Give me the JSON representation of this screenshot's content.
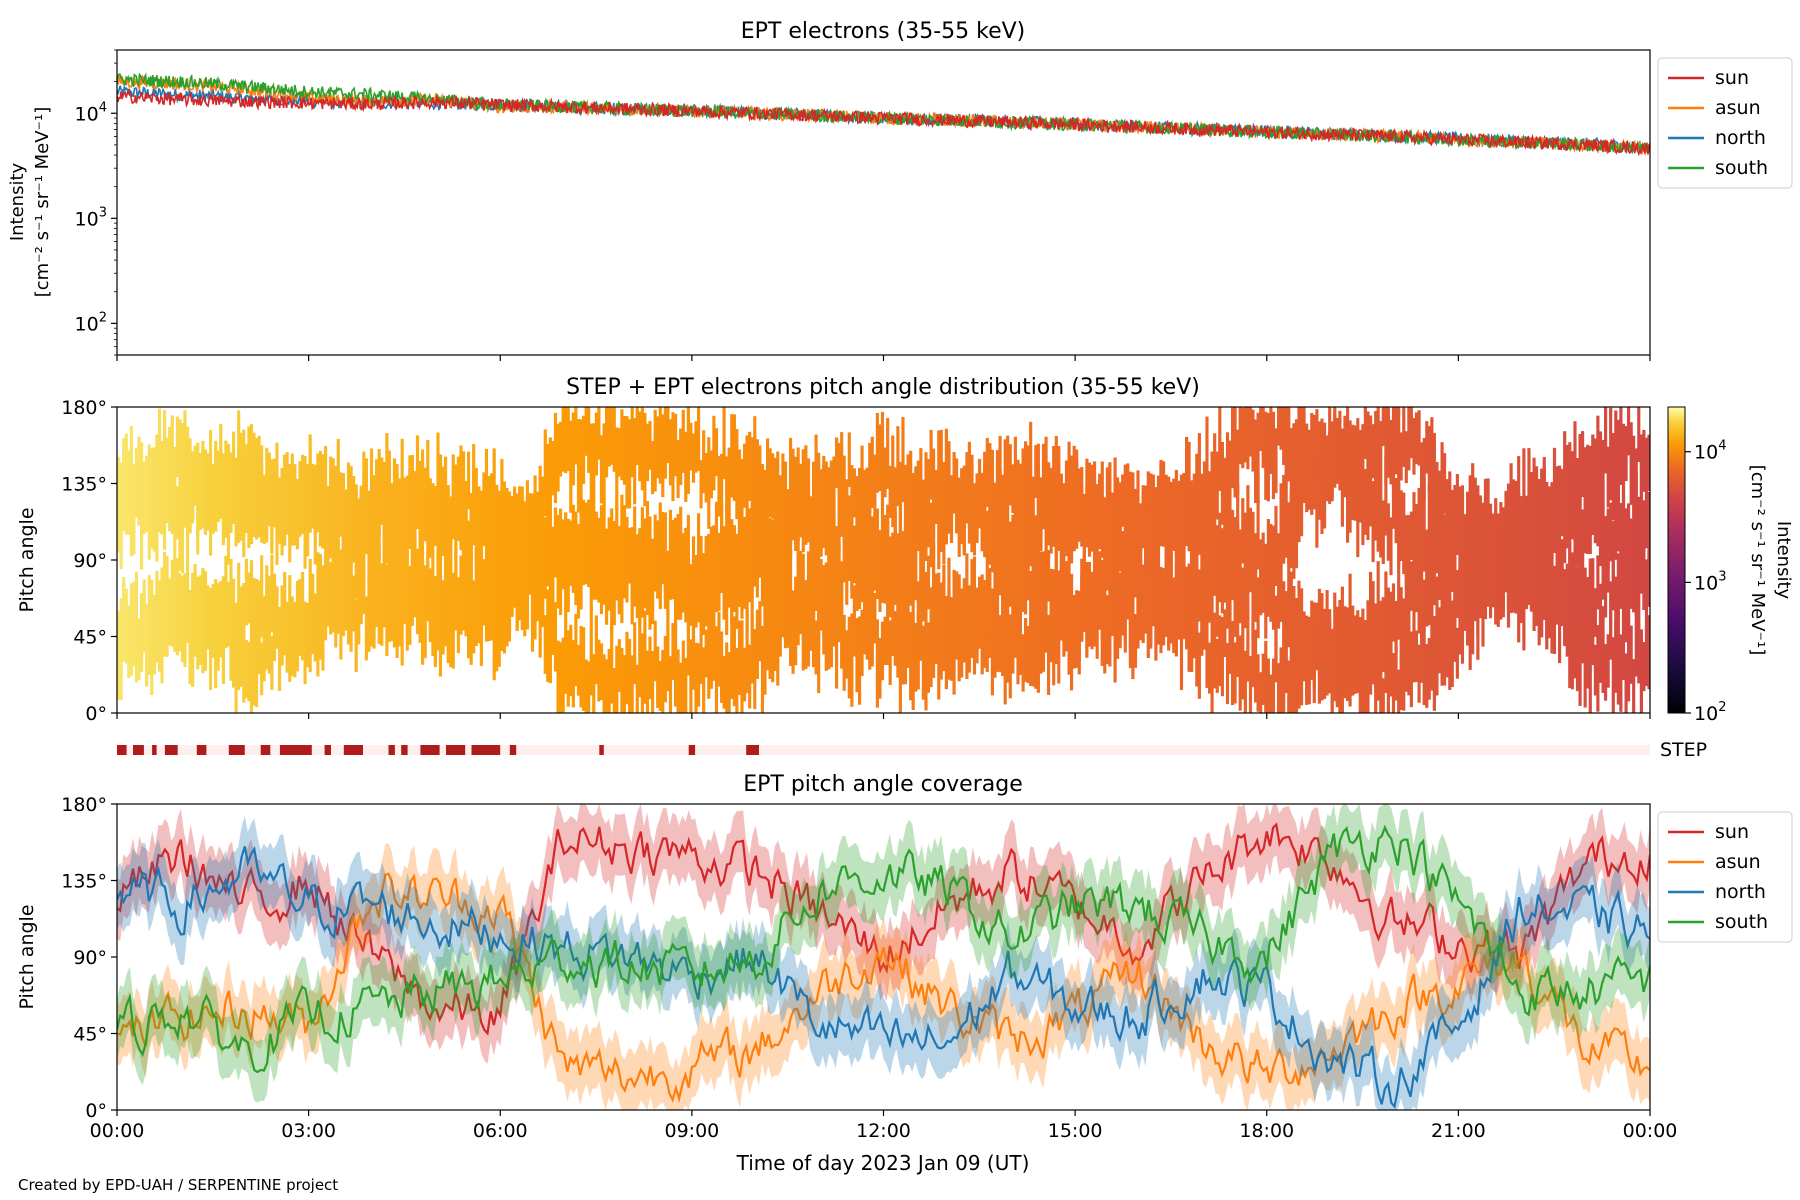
{
  "footer": "Created by EPD-UAH / SERPENTINE project",
  "xaxis": {
    "label": "Time of day 2023 Jan 09 (UT)",
    "ticks": [
      "00:00",
      "03:00",
      "06:00",
      "09:00",
      "12:00",
      "15:00",
      "18:00",
      "21:00",
      "00:00"
    ],
    "range_hours": [
      0,
      24
    ]
  },
  "colors": {
    "sun": "#d62728",
    "asun": "#ff7f0e",
    "north": "#1f77b4",
    "south": "#2ca02c"
  },
  "chart_data": [
    {
      "type": "line",
      "title": "EPT electrons (35-55 keV)",
      "ylabel_line1": "Intensity",
      "ylabel_line2": "[cm⁻² s⁻¹ sr⁻¹ MeV⁻¹]",
      "yscale": "log",
      "ylim": [
        50,
        40000
      ],
      "yticks": [
        {
          "value": 100,
          "base": "10",
          "exp": "2"
        },
        {
          "value": 1000,
          "base": "10",
          "exp": "3"
        },
        {
          "value": 10000,
          "base": "10",
          "exp": "4"
        }
      ],
      "x_hours": [
        0,
        1,
        2,
        3,
        4,
        5,
        6,
        7,
        8,
        9,
        10,
        11,
        12,
        13,
        14,
        15,
        16,
        17,
        18,
        19,
        20,
        21,
        22,
        23,
        24
      ],
      "legend_position": "outside-right",
      "series": [
        {
          "name": "sun",
          "values": [
            14500,
            13500,
            13000,
            12500,
            12200,
            12800,
            12000,
            11500,
            11000,
            10500,
            10000,
            9500,
            9000,
            8600,
            8200,
            7800,
            7400,
            7000,
            6600,
            6300,
            6000,
            5600,
            5300,
            5000,
            4600
          ]
        },
        {
          "name": "asun",
          "values": [
            20000,
            19000,
            17000,
            14000,
            13000,
            13500,
            11500,
            11500,
            11000,
            10500,
            10000,
            9500,
            9000,
            8600,
            8200,
            7800,
            7400,
            7000,
            6600,
            6300,
            6000,
            5600,
            5300,
            5000,
            4600
          ]
        },
        {
          "name": "north",
          "values": [
            16000,
            15000,
            14000,
            13000,
            12500,
            12500,
            12000,
            11500,
            11000,
            10500,
            10000,
            9600,
            9100,
            8700,
            8300,
            7900,
            7500,
            7100,
            6700,
            6400,
            6100,
            5700,
            5400,
            5100,
            4700
          ]
        },
        {
          "name": "south",
          "values": [
            21000,
            20000,
            18000,
            16000,
            15000,
            13500,
            12000,
            11500,
            11000,
            10500,
            10000,
            9500,
            9000,
            8600,
            8200,
            7800,
            7400,
            7000,
            6600,
            6300,
            6000,
            5600,
            5300,
            5000,
            4600
          ]
        }
      ]
    },
    {
      "type": "heatmap",
      "title": "STEP + EPT electrons pitch angle distribution (35-55 keV)",
      "ylabel": "Pitch angle",
      "ylim": [
        0,
        180
      ],
      "yticks": [
        "0°",
        "45°",
        "90°",
        "135°",
        "180°"
      ],
      "colorbar": {
        "label_line1": "Intensity",
        "label_line2": "[cm⁻² s⁻¹ sr⁻¹ MeV⁻¹]",
        "scale": "log",
        "range": [
          100,
          22000
        ],
        "ticks": [
          {
            "value": 100,
            "base": "10",
            "exp": "2"
          },
          {
            "value": 1000,
            "base": "10",
            "exp": "3"
          },
          {
            "value": 10000,
            "base": "10",
            "exp": "4"
          }
        ]
      },
      "band_intensity": [
        {
          "hour": 0,
          "value": 19000
        },
        {
          "hour": 2,
          "value": 16000
        },
        {
          "hour": 4,
          "value": 13500
        },
        {
          "hour": 6,
          "value": 12000
        },
        {
          "hour": 9,
          "value": 10500
        },
        {
          "hour": 12,
          "value": 9000
        },
        {
          "hour": 15,
          "value": 7800
        },
        {
          "hour": 18,
          "value": 6600
        },
        {
          "hour": 21,
          "value": 5600
        },
        {
          "hour": 24,
          "value": 4600
        }
      ]
    },
    {
      "type": "bar",
      "label": "STEP",
      "description_colors": {
        "on": "#b01c1c",
        "off": "#fdf0ec"
      },
      "on_intervals_hours": [
        [
          0.0,
          0.15
        ],
        [
          0.25,
          0.42
        ],
        [
          0.55,
          0.62
        ],
        [
          0.75,
          0.95
        ],
        [
          1.25,
          1.4
        ],
        [
          1.75,
          2.0
        ],
        [
          2.25,
          2.4
        ],
        [
          2.55,
          3.05
        ],
        [
          3.25,
          3.35
        ],
        [
          3.55,
          3.85
        ],
        [
          4.25,
          4.35
        ],
        [
          4.45,
          4.55
        ],
        [
          4.75,
          5.05
        ],
        [
          5.15,
          5.45
        ],
        [
          5.55,
          6.0
        ],
        [
          6.15,
          6.25
        ],
        [
          7.55,
          7.62
        ],
        [
          8.95,
          9.05
        ],
        [
          9.85,
          10.05
        ]
      ]
    },
    {
      "type": "line",
      "title": "EPT pitch angle coverage",
      "ylabel": "Pitch angle",
      "ylim": [
        0,
        180
      ],
      "yticks": [
        "0°",
        "45°",
        "90°",
        "135°",
        "180°"
      ],
      "x_hours": [
        0,
        1,
        2,
        3,
        4,
        5,
        6,
        7,
        8,
        9,
        10,
        11,
        12,
        13,
        14,
        15,
        16,
        17,
        18,
        19,
        20,
        21,
        22,
        23,
        24
      ],
      "legend_position": "outside-right",
      "series": [
        {
          "name": "sun",
          "values": [
            125,
            150,
            120,
            135,
            90,
            60,
            55,
            160,
            155,
            150,
            140,
            115,
            90,
            120,
            140,
            120,
            100,
            135,
            165,
            150,
            110,
            100,
            90,
            145,
            155
          ]
        },
        {
          "name": "asun",
          "values": [
            40,
            55,
            60,
            50,
            130,
            125,
            120,
            25,
            20,
            25,
            35,
            70,
            95,
            60,
            40,
            55,
            80,
            40,
            20,
            35,
            60,
            75,
            90,
            35,
            25
          ]
        },
        {
          "name": "north",
          "values": [
            130,
            120,
            140,
            120,
            120,
            110,
            105,
            95,
            90,
            80,
            90,
            50,
            40,
            40,
            80,
            60,
            55,
            80,
            70,
            30,
            15,
            50,
            120,
            115,
            105
          ]
        },
        {
          "name": "south",
          "values": [
            45,
            60,
            35,
            55,
            60,
            70,
            75,
            90,
            85,
            80,
            90,
            130,
            140,
            130,
            100,
            120,
            120,
            100,
            90,
            150,
            165,
            120,
            70,
            70,
            75
          ]
        }
      ]
    }
  ]
}
